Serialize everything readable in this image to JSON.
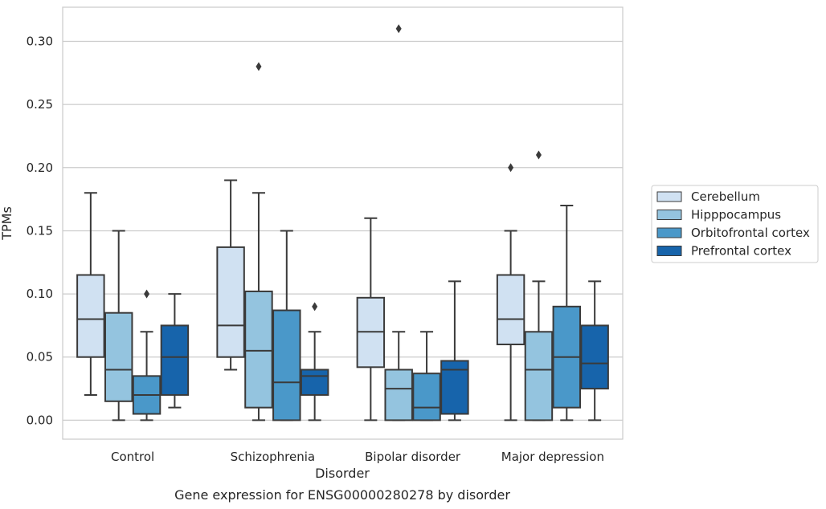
{
  "chart_data": {
    "type": "box",
    "title": "",
    "caption": "Gene expression for ENSG00000280278 by disorder",
    "xlabel": "Disorder",
    "ylabel": "TPMs",
    "ylim": [
      -0.015,
      0.327
    ],
    "yticks": [
      0.0,
      0.05,
      0.1,
      0.15,
      0.2,
      0.25,
      0.3
    ],
    "ytick_labels": [
      "0.00",
      "0.05",
      "0.10",
      "0.15",
      "0.20",
      "0.25",
      "0.30"
    ],
    "grid": "horizontal",
    "legend_position": "right",
    "categories": [
      "Control",
      "Schizophrenia",
      "Bipolar disorder",
      "Major depression"
    ],
    "series": [
      {
        "name": "Cerebellum",
        "color": "#d0e1f2",
        "boxes": [
          {
            "whislo": 0.02,
            "q1": 0.05,
            "med": 0.08,
            "q3": 0.115,
            "whishi": 0.18,
            "fliers": []
          },
          {
            "whislo": 0.04,
            "q1": 0.05,
            "med": 0.075,
            "q3": 0.137,
            "whishi": 0.19,
            "fliers": []
          },
          {
            "whislo": 0.0,
            "q1": 0.042,
            "med": 0.07,
            "q3": 0.097,
            "whishi": 0.16,
            "fliers": []
          },
          {
            "whislo": 0.0,
            "q1": 0.06,
            "med": 0.08,
            "q3": 0.115,
            "whishi": 0.15,
            "fliers": [
              0.2
            ]
          }
        ]
      },
      {
        "name": "Hipppocampus",
        "color": "#94c4df",
        "boxes": [
          {
            "whislo": 0.0,
            "q1": 0.015,
            "med": 0.04,
            "q3": 0.085,
            "whishi": 0.15,
            "fliers": []
          },
          {
            "whislo": 0.0,
            "q1": 0.01,
            "med": 0.055,
            "q3": 0.102,
            "whishi": 0.18,
            "fliers": [
              0.28
            ]
          },
          {
            "whislo": 0.0,
            "q1": 0.0,
            "med": 0.025,
            "q3": 0.04,
            "whishi": 0.07,
            "fliers": [
              0.31
            ]
          },
          {
            "whislo": 0.0,
            "q1": 0.0,
            "med": 0.04,
            "q3": 0.07,
            "whishi": 0.11,
            "fliers": [
              0.21
            ]
          }
        ]
      },
      {
        "name": "Orbitofrontal cortex",
        "color": "#4a98c9",
        "boxes": [
          {
            "whislo": 0.0,
            "q1": 0.005,
            "med": 0.02,
            "q3": 0.035,
            "whishi": 0.07,
            "fliers": [
              0.1
            ]
          },
          {
            "whislo": 0.0,
            "q1": 0.0,
            "med": 0.03,
            "q3": 0.087,
            "whishi": 0.15,
            "fliers": []
          },
          {
            "whislo": 0.0,
            "q1": 0.0,
            "med": 0.01,
            "q3": 0.037,
            "whishi": 0.07,
            "fliers": []
          },
          {
            "whislo": 0.0,
            "q1": 0.01,
            "med": 0.05,
            "q3": 0.09,
            "whishi": 0.17,
            "fliers": []
          }
        ]
      },
      {
        "name": "Prefrontal cortex",
        "color": "#1764ab",
        "boxes": [
          {
            "whislo": 0.01,
            "q1": 0.02,
            "med": 0.05,
            "q3": 0.075,
            "whishi": 0.1,
            "fliers": []
          },
          {
            "whislo": 0.0,
            "q1": 0.02,
            "med": 0.035,
            "q3": 0.04,
            "whishi": 0.07,
            "fliers": [
              0.09
            ]
          },
          {
            "whislo": 0.0,
            "q1": 0.005,
            "med": 0.04,
            "q3": 0.047,
            "whishi": 0.11,
            "fliers": []
          },
          {
            "whislo": 0.0,
            "q1": 0.025,
            "med": 0.045,
            "q3": 0.075,
            "whishi": 0.11,
            "fliers": []
          }
        ]
      }
    ]
  }
}
